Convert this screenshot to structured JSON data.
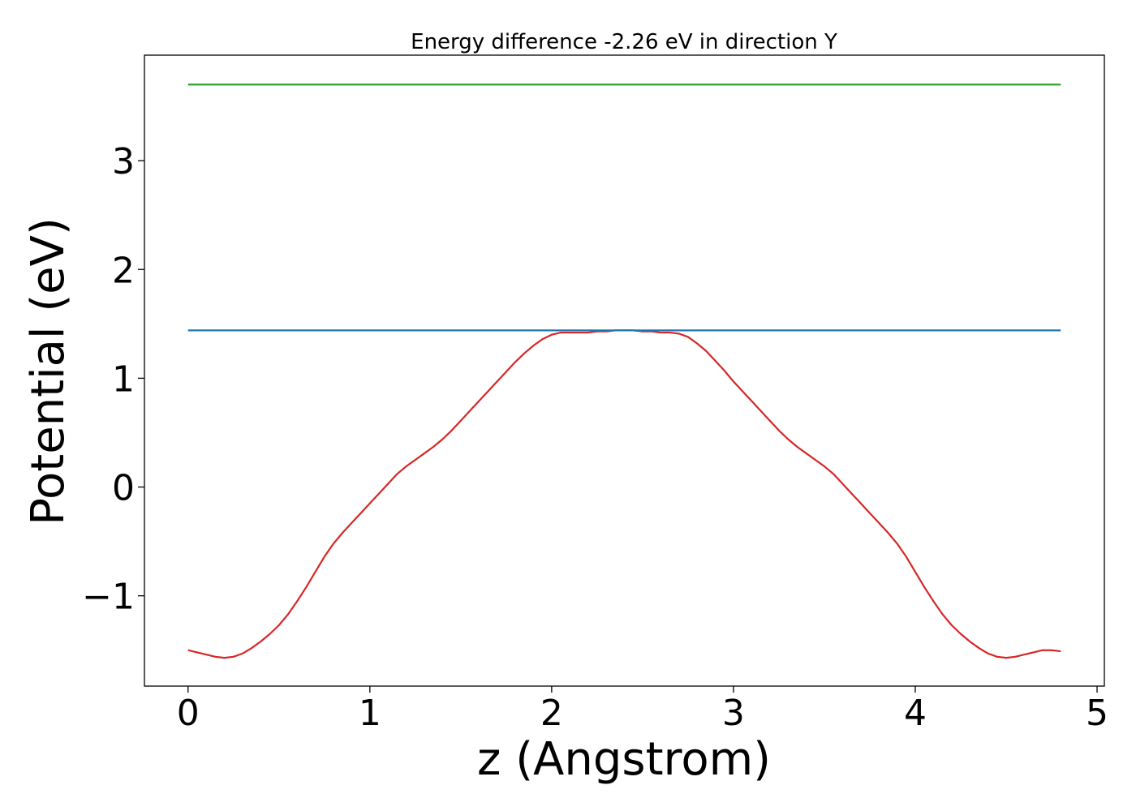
{
  "chart_data": {
    "type": "line",
    "title": "Energy difference -2.26 eV in direction Y",
    "xlabel": "z (Angstrom)",
    "ylabel": "Potential (eV)",
    "xlim": [
      -0.24,
      5.04
    ],
    "ylim": [
      -1.83,
      3.97
    ],
    "xticks": [
      0,
      1,
      2,
      3,
      4,
      5
    ],
    "xtick_labels": [
      "0",
      "1",
      "2",
      "3",
      "4",
      "5"
    ],
    "yticks": [
      -1,
      0,
      1,
      2,
      3
    ],
    "ytick_labels": [
      "−1",
      "0",
      "1",
      "2",
      "3"
    ],
    "grid": false,
    "series": [
      {
        "color": "#d62728",
        "x": [
          0,
          0.05,
          0.1,
          0.15,
          0.2,
          0.25,
          0.3,
          0.35,
          0.4,
          0.45,
          0.5,
          0.55,
          0.6,
          0.65,
          0.7,
          0.75,
          0.8,
          0.85,
          0.9,
          0.95,
          1.0,
          1.05,
          1.1,
          1.15,
          1.2,
          1.25,
          1.3,
          1.35,
          1.4,
          1.45,
          1.5,
          1.55,
          1.6,
          1.65,
          1.7,
          1.75,
          1.8,
          1.85,
          1.9,
          1.95,
          2.0,
          2.05,
          2.1,
          2.15,
          2.2,
          2.25,
          2.3,
          2.35,
          2.4,
          2.45,
          2.5,
          2.55,
          2.6,
          2.65,
          2.7,
          2.75,
          2.8,
          2.85,
          2.9,
          2.95,
          3.0,
          3.05,
          3.1,
          3.15,
          3.2,
          3.25,
          3.3,
          3.35,
          3.4,
          3.45,
          3.5,
          3.55,
          3.6,
          3.65,
          3.7,
          3.75,
          3.8,
          3.85,
          3.9,
          3.95,
          4.0,
          4.05,
          4.1,
          4.15,
          4.2,
          4.25,
          4.3,
          4.35,
          4.4,
          4.45,
          4.5,
          4.55,
          4.6,
          4.65,
          4.7,
          4.75,
          4.8
        ],
        "y": [
          -1.5,
          -1.52,
          -1.54,
          -1.56,
          -1.57,
          -1.56,
          -1.53,
          -1.48,
          -1.42,
          -1.35,
          -1.27,
          -1.17,
          -1.05,
          -0.92,
          -0.78,
          -0.64,
          -0.52,
          -0.42,
          -0.33,
          -0.24,
          -0.15,
          -0.06,
          0.03,
          0.12,
          0.19,
          0.25,
          0.31,
          0.37,
          0.44,
          0.52,
          0.61,
          0.7,
          0.79,
          0.88,
          0.97,
          1.06,
          1.15,
          1.23,
          1.3,
          1.36,
          1.4,
          1.42,
          1.42,
          1.42,
          1.42,
          1.43,
          1.43,
          1.44,
          1.44,
          1.44,
          1.43,
          1.43,
          1.42,
          1.42,
          1.41,
          1.38,
          1.32,
          1.25,
          1.16,
          1.07,
          0.97,
          0.88,
          0.79,
          0.7,
          0.61,
          0.52,
          0.44,
          0.37,
          0.31,
          0.25,
          0.19,
          0.12,
          0.03,
          -0.06,
          -0.15,
          -0.24,
          -0.33,
          -0.42,
          -0.52,
          -0.64,
          -0.78,
          -0.92,
          -1.05,
          -1.17,
          -1.27,
          -1.35,
          -1.42,
          -1.48,
          -1.53,
          -1.56,
          -1.57,
          -1.56,
          -1.54,
          -1.52,
          -1.5,
          -1.5,
          -1.51
        ]
      },
      {
        "color": "#1f77b4",
        "x": [
          0,
          4.8
        ],
        "y": [
          1.44,
          1.44
        ]
      },
      {
        "color": "#2ca02c",
        "x": [
          0,
          4.8
        ],
        "y": [
          3.7,
          3.7
        ]
      }
    ]
  }
}
